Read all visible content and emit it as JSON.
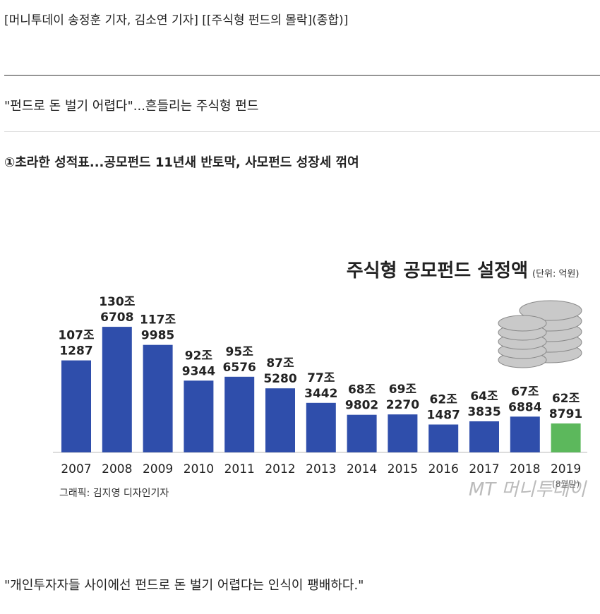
{
  "header": {
    "byline": "[머니투데이 송정훈 기자, 김소연 기자] [[주식형 펀드의 몰락](종합)]"
  },
  "subtitle": "\"펀드로 돈 벌기 어렵다\"...흔들리는 주식형 펀드",
  "section_heading": "①초라한 성적표...공모펀드 11년새 반토막, 사모펀드 성장세 꺾여",
  "chart_data": {
    "type": "bar",
    "title": "주식형 공모펀드 설정액",
    "unit": "(단위: 억원)",
    "categories": [
      "2007",
      "2008",
      "2009",
      "2010",
      "2011",
      "2012",
      "2013",
      "2014",
      "2015",
      "2016",
      "2017",
      "2018",
      "2019"
    ],
    "category_note": "(8월말)",
    "values": [
      1071287,
      1306708,
      1179985,
      929344,
      956576,
      875280,
      773442,
      689802,
      692270,
      621487,
      643835,
      676884,
      628791
    ],
    "value_labels": [
      [
        "107조",
        "1287"
      ],
      [
        "130조",
        "6708"
      ],
      [
        "117조",
        "9985"
      ],
      [
        "92조",
        "9344"
      ],
      [
        "95조",
        "6576"
      ],
      [
        "87조",
        "5280"
      ],
      [
        "77조",
        "3442"
      ],
      [
        "68조",
        "9802"
      ],
      [
        "69조",
        "2270"
      ],
      [
        "62조",
        "1487"
      ],
      [
        "64조",
        "3835"
      ],
      [
        "67조",
        "6884"
      ],
      [
        "62조",
        "8791"
      ]
    ],
    "colors": [
      "#2f4eab",
      "#2f4eab",
      "#2f4eab",
      "#2f4eab",
      "#2f4eab",
      "#2f4eab",
      "#2f4eab",
      "#2f4eab",
      "#2f4eab",
      "#2f4eab",
      "#2f4eab",
      "#2f4eab",
      "#5cb85c"
    ],
    "ylim": [
      426000,
      1416000
    ],
    "credit": "그래픽: 김지영 디자인기자",
    "watermark": "MT 머니투데이"
  },
  "quote": "\"개인투자자들 사이에선 펀드로 돈 벌기 어렵다는 인식이 팽배하다.\""
}
